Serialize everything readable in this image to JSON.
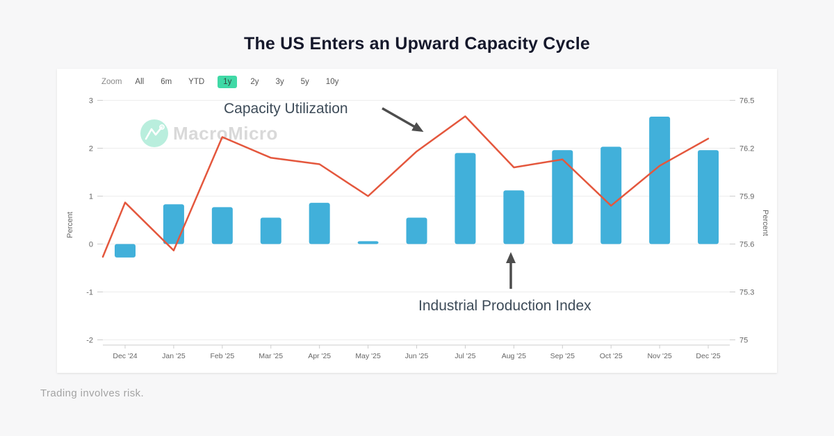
{
  "page": {
    "title": "The US Enters an Upward Capacity Cycle",
    "footer": "Trading involves risk.",
    "watermark": {
      "brand": "MacroMicro",
      "logo_icon": "macromicro-zigzag-logo"
    }
  },
  "toolbar": {
    "zoom_label": "Zoom",
    "range_buttons": [
      {
        "label": "All",
        "selected": false
      },
      {
        "label": "6m",
        "selected": false
      },
      {
        "label": "YTD",
        "selected": false
      },
      {
        "label": "1y",
        "selected": true
      },
      {
        "label": "2y",
        "selected": false
      },
      {
        "label": "3y",
        "selected": false
      },
      {
        "label": "5y",
        "selected": false
      },
      {
        "label": "10y",
        "selected": false
      }
    ]
  },
  "chart_data": {
    "type": "combo-bar-line",
    "categories": [
      "Dec '24",
      "Jan '25",
      "Feb '25",
      "Mar '25",
      "Apr '25",
      "May '25",
      "Jun '25",
      "Jul '25",
      "Aug '25",
      "Sep '25",
      "Oct '25",
      "Nov '25",
      "Dec '25"
    ],
    "left_axis": {
      "label": "Percent",
      "tick_labels": [
        "3",
        "2",
        "1",
        "0",
        "-1",
        "-2"
      ],
      "tick_values": [
        3,
        2,
        1,
        0,
        -1,
        -2
      ],
      "min": -2,
      "max": 3
    },
    "right_axis": {
      "label": "Percent",
      "tick_labels": [
        "76.5",
        "76.2",
        "75.9",
        "75.6",
        "75.3",
        "75"
      ],
      "tick_values": [
        76.5,
        76.2,
        75.9,
        75.6,
        75.3,
        75
      ],
      "min": 75,
      "max": 76.5
    },
    "series": [
      {
        "name": "Industrial Production Index",
        "type": "bar",
        "axis": "left",
        "color": "#41b0da",
        "values": [
          -0.28,
          0.83,
          0.77,
          0.55,
          0.86,
          0.06,
          0.55,
          1.9,
          1.12,
          1.96,
          2.03,
          2.66,
          1.96
        ]
      },
      {
        "name": "Capacity Utilization",
        "type": "line",
        "axis": "right",
        "color": "#e4573d",
        "values": [
          75.86,
          75.56,
          76.27,
          76.14,
          76.1,
          75.9,
          76.18,
          76.4,
          76.08,
          76.13,
          75.84,
          76.09,
          76.26
        ],
        "lead_in_value_at_left_edge": 75.52
      }
    ],
    "annotations": [
      {
        "text": "Capacity Utilization",
        "arrow": "points-down-right-to-line"
      },
      {
        "text": "Industrial Production Index",
        "arrow": "points-up-to-bars"
      }
    ],
    "grid": true,
    "legend_position": "none"
  },
  "colors": {
    "bar": "#41b0da",
    "line": "#e4573d",
    "selected_range_bg": "#40d9a6",
    "watermark_circle": "#b9eedd",
    "watermark_text": "#d9d9d9",
    "grid": "#ededed",
    "axis": "#cccccc",
    "tick_text": "#666666",
    "annotation_text": "#3e4c59",
    "arrow": "#4d4d4d",
    "title_text": "#15182b",
    "footer_text": "#a3a3a3"
  }
}
